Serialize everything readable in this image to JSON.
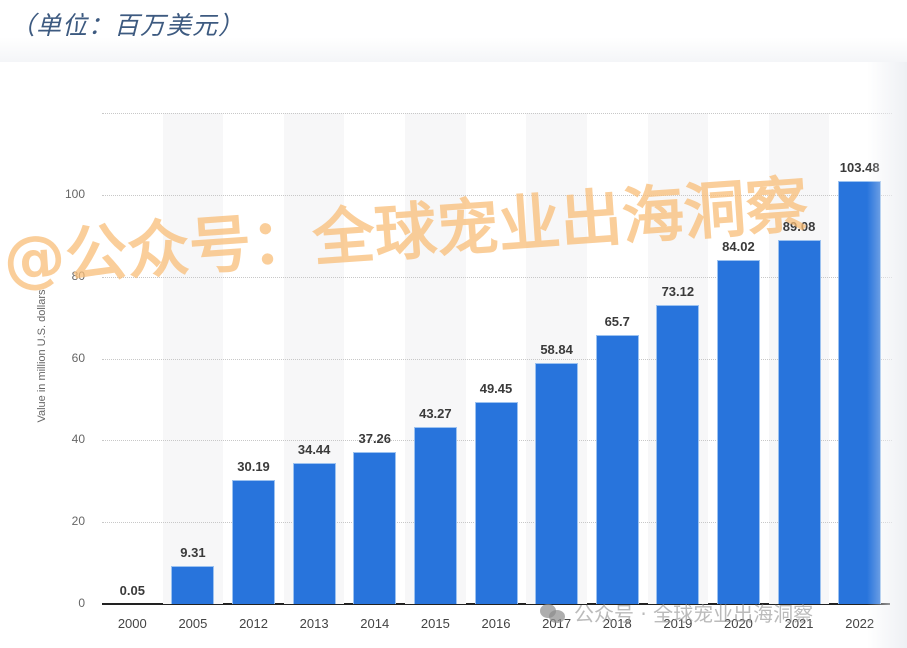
{
  "header": {
    "unit_title": "（单位：百万美元）"
  },
  "watermarks": {
    "main": "@公众号：全球宠业出海洞察",
    "footer": "公众号 · 全球宠业出海洞察"
  },
  "colors": {
    "bar": "#2874dc",
    "band": "#f7f7f8",
    "watermark": "#f8be78",
    "title": "#3d5a80"
  },
  "chart_data": {
    "type": "bar",
    "title": "（单位：百万美元）",
    "xlabel": "",
    "ylabel": "Value in million U.S. dollars",
    "categories": [
      "2000",
      "2005",
      "2012",
      "2013",
      "2014",
      "2015",
      "2016",
      "2017",
      "2018",
      "2019",
      "2020",
      "2021",
      "2022"
    ],
    "values": [
      0.05,
      9.31,
      30.19,
      34.44,
      37.26,
      43.27,
      49.45,
      58.84,
      65.7,
      73.12,
      84.02,
      89.08,
      103.48
    ],
    "value_labels": [
      "0.05",
      "9.31",
      "30.19",
      "34.44",
      "37.26",
      "43.27",
      "49.45",
      "58.84",
      "65.7",
      "73.12",
      "84.02",
      "89.08",
      "103.48"
    ],
    "yticks": [
      0,
      20,
      40,
      60,
      80,
      100
    ],
    "ylim": [
      0,
      120
    ],
    "grid": true,
    "legend": null
  }
}
